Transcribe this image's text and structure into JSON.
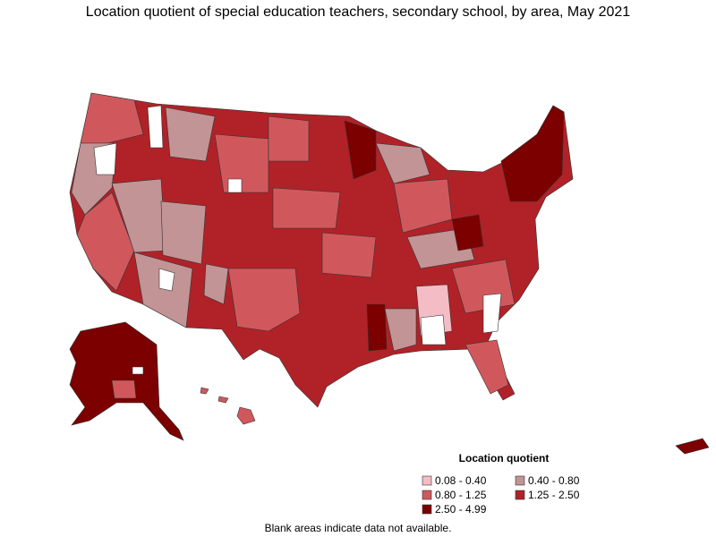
{
  "title": "Location quotient of special education teachers, secondary school, by area, May 2021",
  "legend": {
    "title": "Location quotient",
    "items": [
      {
        "label": "0.08 - 0.40",
        "color": "#f4bcc4"
      },
      {
        "label": "0.40 - 0.80",
        "color": "#c29496"
      },
      {
        "label": "0.80 - 1.25",
        "color": "#d0585c"
      },
      {
        "label": "1.25 - 2.50",
        "color": "#b02228"
      },
      {
        "label": "2.50 - 4.99",
        "color": "#7c0000"
      }
    ]
  },
  "footnote": "Blank areas indicate data not available."
}
